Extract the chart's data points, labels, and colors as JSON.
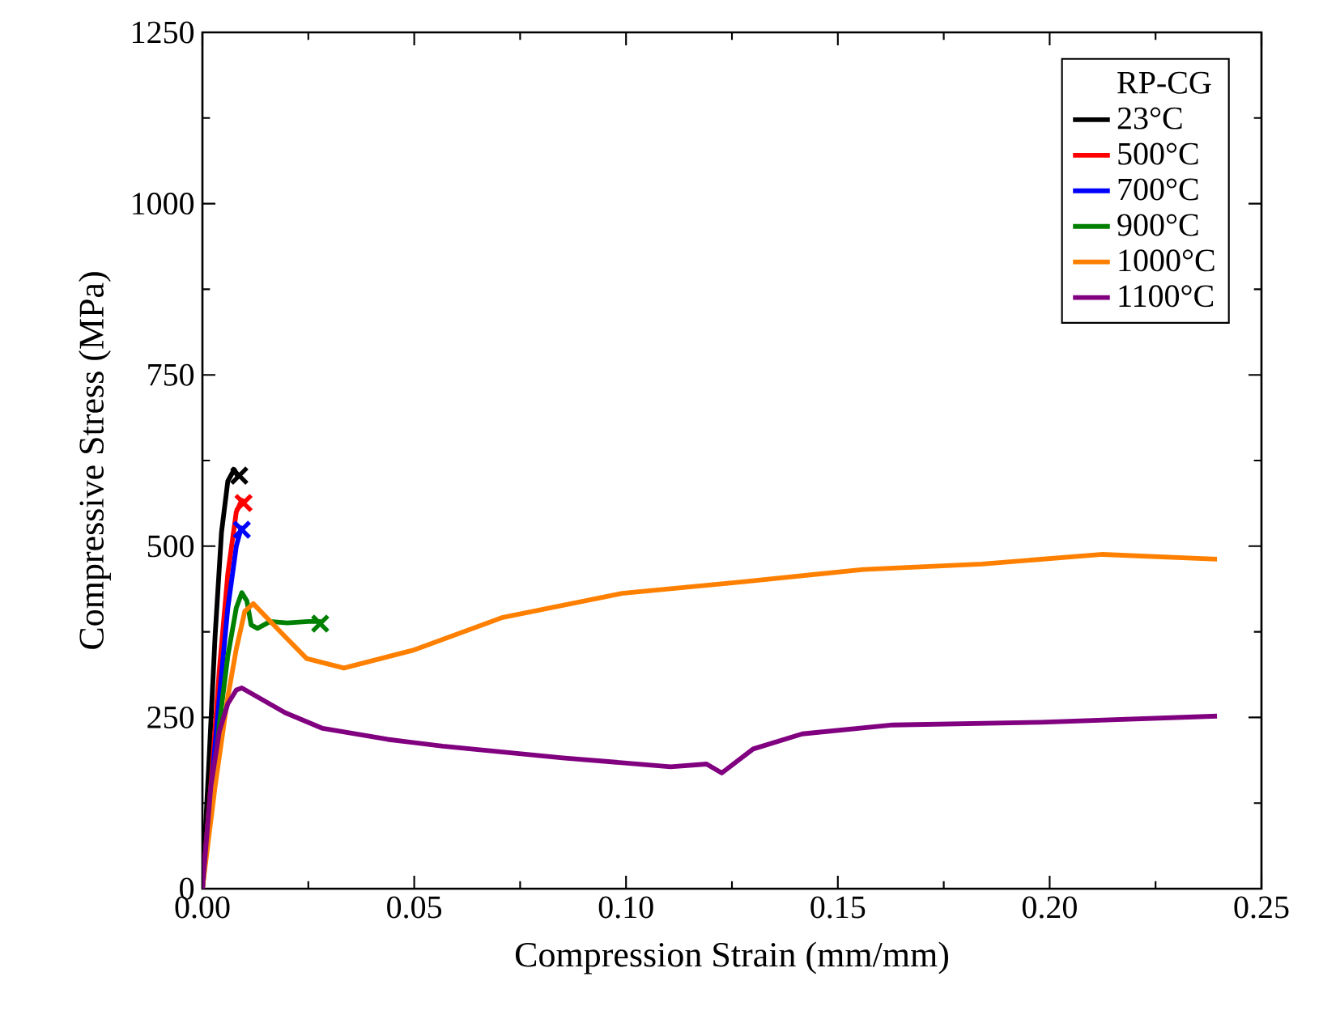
{
  "chart_data": {
    "type": "line",
    "xlabel": "Compression Strain (mm/mm)",
    "ylabel": "Compressive Stress (MPa)",
    "legend_title": "RP-CG",
    "xlim": [
      0,
      0.25
    ],
    "ylim": [
      0,
      1250
    ],
    "xticks": [
      {
        "value": 0,
        "label": "0.00"
      },
      0.05,
      {
        "value": 0.1,
        "label": "0.10"
      },
      0.15,
      {
        "value": 0.2,
        "label": "0.20"
      },
      0.25
    ],
    "yticks": [
      0,
      250,
      500,
      750,
      1000,
      1250
    ],
    "grid": false,
    "legend": "top right",
    "marker": "none",
    "line_style": "solid",
    "series": [
      {
        "name": "23°C",
        "color": "#000000",
        "x": [
          0,
          0.0015,
          0.003,
          0.0045,
          0.006,
          0.0075,
          0.0085
        ],
        "values": [
          0,
          180,
          370,
          520,
          595,
          612,
          600
        ]
      },
      {
        "name": "500°C",
        "color": "#ff0000",
        "x": [
          0,
          0.002,
          0.004,
          0.006,
          0.008,
          0.0095
        ],
        "values": [
          0,
          150,
          320,
          460,
          550,
          570
        ]
      },
      {
        "name": "700°C",
        "color": "#0000ff",
        "x": [
          0,
          0.002,
          0.004,
          0.006,
          0.008,
          0.0093
        ],
        "values": [
          0,
          null,
          280,
          410,
          500,
          530
        ]
      },
      {
        "name": "900°C",
        "color": "#008000",
        "x": [
          0,
          0.002,
          0.004,
          0.006,
          0.008,
          0.0093,
          0.0105,
          0.0115,
          0.013,
          0.016,
          0.02,
          0.025,
          0.028
        ],
        "values": [
          0,
          120,
          240,
          340,
          410,
          432,
          420,
          385,
          380,
          390,
          388,
          390,
          390
        ]
      },
      {
        "name": "1000°C",
        "color": "#ff8000",
        "x": [
          0,
          0.003,
          0.006,
          0.008,
          0.01,
          0.012,
          0.0195,
          0.0246,
          0.0334,
          0.0497,
          0.0709,
          0.099,
          0.1275,
          0.156,
          0.184,
          0.2125,
          0.2395
        ],
        "values": [
          0,
          150,
          280,
          350,
          405,
          416,
          368,
          336,
          322,
          348,
          396,
          431,
          448,
          466,
          474,
          488,
          481
        ]
      },
      {
        "name": "1100°C",
        "color": "#800080",
        "x": [
          0,
          0.002,
          0.004,
          0.006,
          0.008,
          0.0093,
          0.0195,
          0.0284,
          0.0437,
          0.0567,
          0.085,
          0.1105,
          0.119,
          0.1226,
          0.13,
          0.1416,
          0.163,
          0.198,
          0.2395
        ],
        "values": [
          0,
          150,
          230,
          270,
          290,
          293,
          257,
          234,
          218,
          208,
          191,
          178,
          182,
          169,
          204,
          226,
          239,
          243,
          252
        ]
      },
      {
        "type": "scatter",
        "marker": "cross",
        "color": "#000000",
        "x": [
          0.0087
        ],
        "values": [
          603
        ]
      },
      {
        "type": "scatter",
        "marker": "cross",
        "color": "#ff0000",
        "x": [
          0.0097
        ],
        "values": [
          563
        ]
      },
      {
        "type": "scatter",
        "marker": "cross",
        "color": "#0000ff",
        "x": [
          0.0093
        ],
        "values": [
          524
        ]
      },
      {
        "type": "scatter",
        "marker": "cross",
        "color": "#008000",
        "x": [
          0.0278
        ],
        "values": [
          387
        ]
      }
    ]
  }
}
